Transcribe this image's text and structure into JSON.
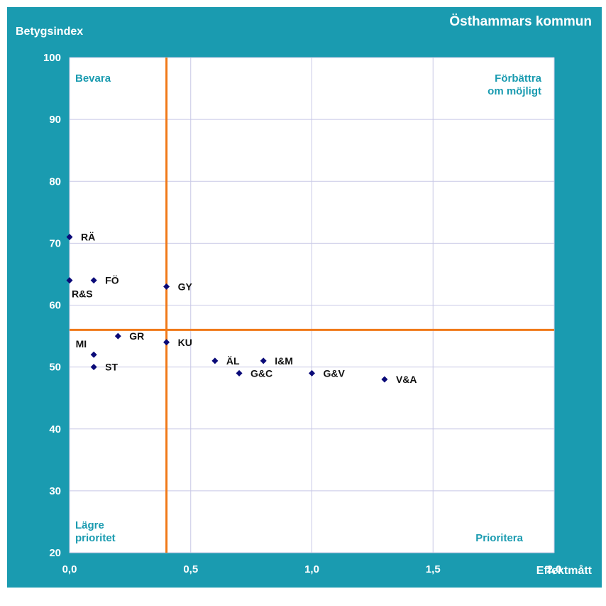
{
  "title": "Östhammars kommun",
  "colors": {
    "frame": "#1a9bb0",
    "plot_bg": "#ffffff",
    "grid": "#c8c8e6",
    "reference_lines": "#f07a1a",
    "marker": "#0a0a78",
    "quadrant_text": "#1a9bb0"
  },
  "chart_data": {
    "type": "scatter",
    "title": "Östhammars kommun",
    "xlabel": "Effektmått",
    "ylabel": "Betygsindex",
    "xlim": [
      0,
      2.0
    ],
    "ylim": [
      20,
      100
    ],
    "x_ticks": [
      "0,0",
      "0,5",
      "1,0",
      "1,5",
      "2,0"
    ],
    "x_tick_values": [
      0,
      0.5,
      1.0,
      1.5,
      2.0
    ],
    "y_ticks": [
      "20",
      "30",
      "40",
      "50",
      "60",
      "70",
      "80",
      "90",
      "100"
    ],
    "y_tick_values": [
      20,
      30,
      40,
      50,
      60,
      70,
      80,
      90,
      100
    ],
    "grid": true,
    "reference_lines": {
      "x": 0.4,
      "y": 56
    },
    "quadrant_labels": {
      "top_left": "Bevara",
      "top_right": [
        "Förbättra",
        "om möjligt"
      ],
      "bottom_left": [
        "Lägre",
        "prioritet"
      ],
      "bottom_right": "Prioritera"
    },
    "points": [
      {
        "label": "RÄ",
        "x": 0.0,
        "y": 71,
        "label_pos": "right"
      },
      {
        "label": "R&S",
        "x": 0.0,
        "y": 64,
        "label_pos": "below-right"
      },
      {
        "label": "FÖ",
        "x": 0.1,
        "y": 64,
        "label_pos": "right"
      },
      {
        "label": "GY",
        "x": 0.4,
        "y": 63,
        "label_pos": "right"
      },
      {
        "label": "GR",
        "x": 0.2,
        "y": 55,
        "label_pos": "right"
      },
      {
        "label": "KU",
        "x": 0.4,
        "y": 54,
        "label_pos": "right"
      },
      {
        "label": "MI",
        "x": 0.1,
        "y": 52,
        "label_pos": "above-left"
      },
      {
        "label": "ST",
        "x": 0.1,
        "y": 50,
        "label_pos": "right"
      },
      {
        "label": "ÄL",
        "x": 0.6,
        "y": 51,
        "label_pos": "right"
      },
      {
        "label": "I&M",
        "x": 0.8,
        "y": 51,
        "label_pos": "right"
      },
      {
        "label": "G&C",
        "x": 0.7,
        "y": 49,
        "label_pos": "right"
      },
      {
        "label": "G&V",
        "x": 1.0,
        "y": 49,
        "label_pos": "right"
      },
      {
        "label": "V&A",
        "x": 1.3,
        "y": 48,
        "label_pos": "right"
      }
    ]
  }
}
